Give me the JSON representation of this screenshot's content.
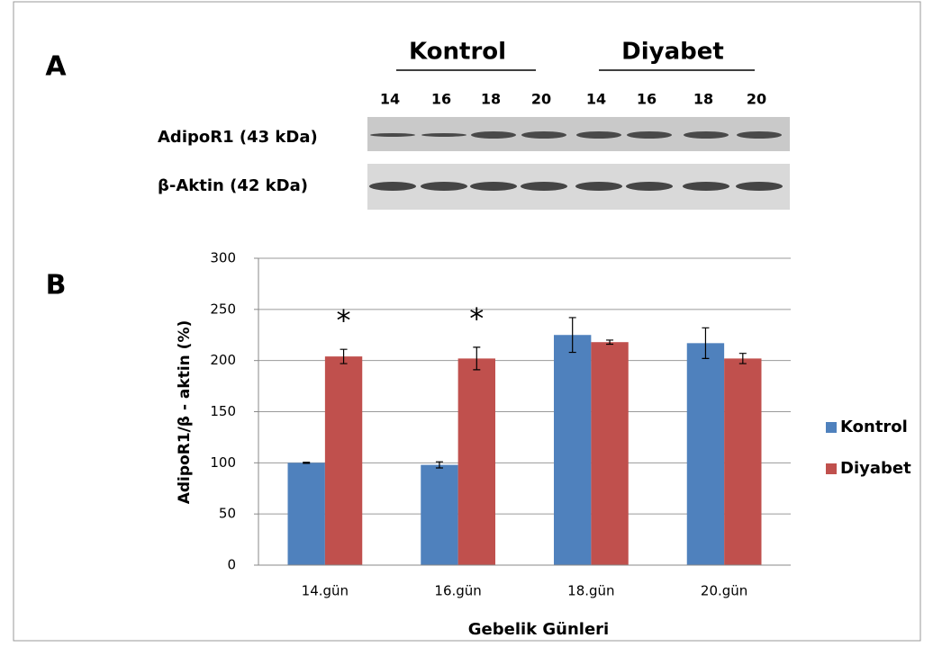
{
  "panel_a": {
    "label": "A",
    "groups": [
      "Kontrol",
      "Diyabet"
    ],
    "lanes": [
      "14",
      "16",
      "18",
      "20",
      "14",
      "16",
      "18",
      "20"
    ],
    "blots": [
      "AdipoR1 (43 kDa)",
      "β-Aktin (42 kDa)"
    ]
  },
  "panel_b": {
    "label": "B"
  },
  "chart_data": {
    "type": "bar",
    "x_label": "Gebelik Günleri",
    "y_label": "AdipoR1/β - aktin (%)",
    "categories": [
      "14.gün",
      "16.gün",
      "18.gün",
      "20.gün"
    ],
    "series": [
      {
        "name": "Kontrol",
        "color": "#4f81bd",
        "values": [
          100,
          98,
          225,
          217
        ],
        "errors": [
          0.5,
          3,
          17,
          15
        ]
      },
      {
        "name": "Diyabet",
        "color": "#c0504d",
        "values": [
          204,
          202,
          218,
          202
        ],
        "errors": [
          7,
          11,
          2,
          5
        ],
        "markers": [
          "*",
          "*",
          null,
          null
        ]
      }
    ],
    "ylim": [
      0,
      300
    ],
    "yticks": [
      0,
      50,
      100,
      150,
      200,
      250,
      300
    ],
    "grid": true,
    "legend": "right"
  }
}
